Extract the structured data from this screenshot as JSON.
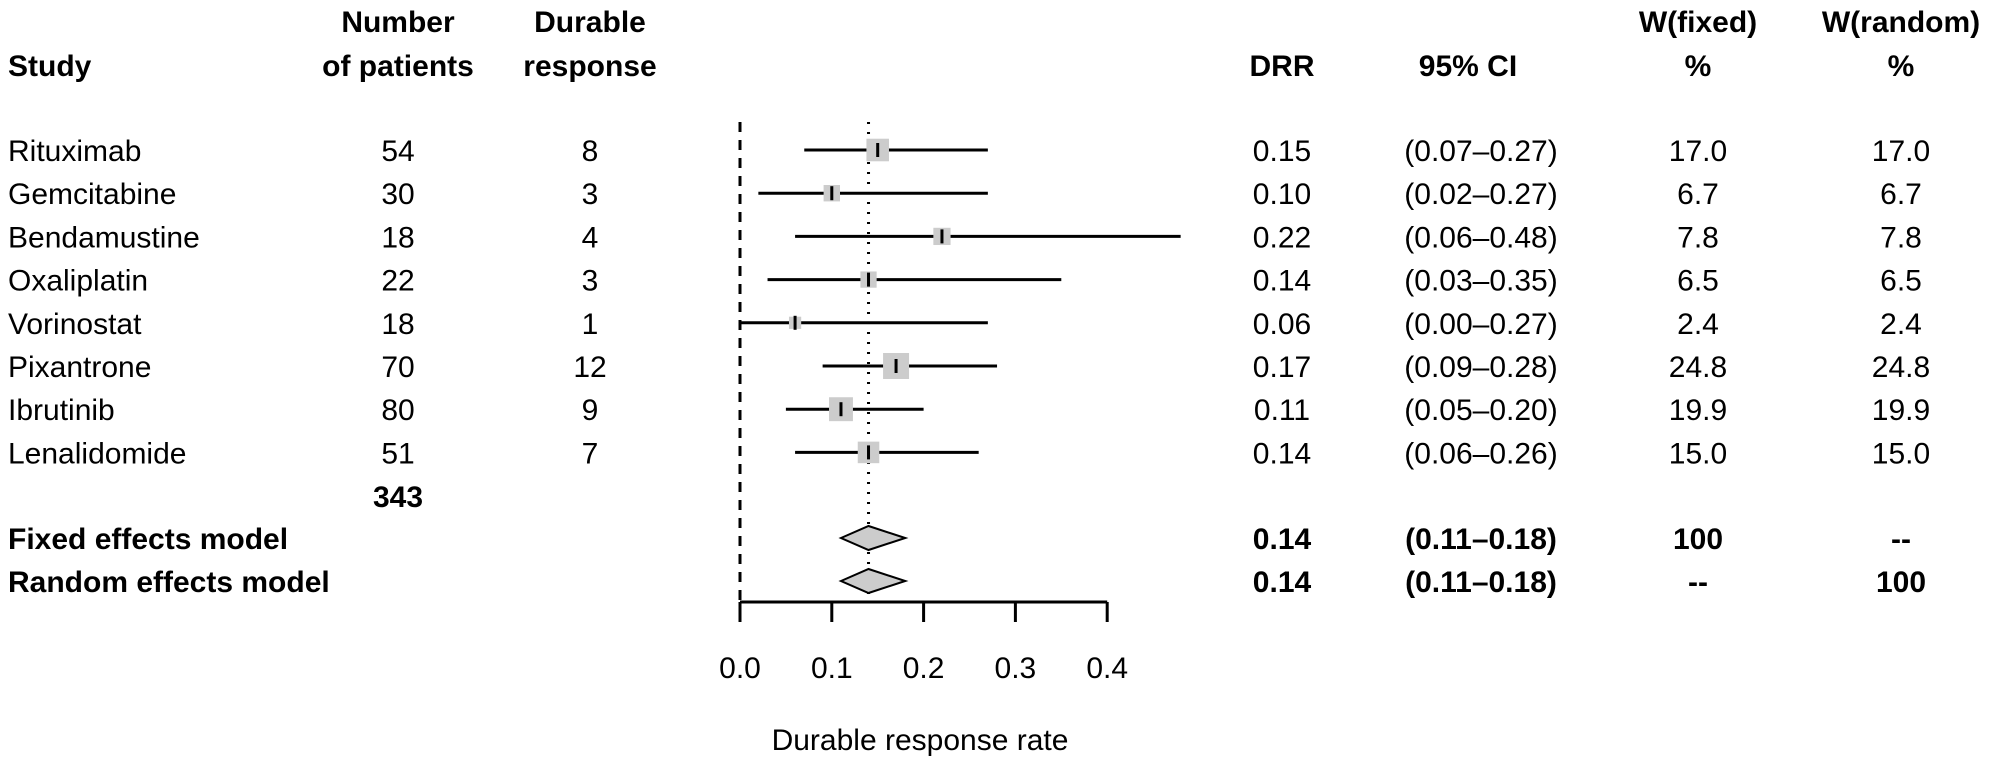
{
  "headers": {
    "study": "Study",
    "patients": [
      "Number",
      "of patients"
    ],
    "durable": [
      "Durable",
      "response"
    ],
    "drr": "DRR",
    "ci": "95% CI",
    "wfixed": [
      "W(fixed)",
      "%"
    ],
    "wrandom": [
      "W(random)",
      "%"
    ]
  },
  "total_patients": "343",
  "chart_data": {
    "type": "forest",
    "xlabel": "Durable response rate",
    "xlim": [
      0.0,
      0.4
    ],
    "xticks": [
      "0.0",
      "0.1",
      "0.2",
      "0.3",
      "0.4"
    ],
    "reference_line": 0.0,
    "pooled_line": 0.14,
    "studies": [
      {
        "study": "Rituximab",
        "patients": "54",
        "responses": "8",
        "drr": 0.15,
        "drr_text": "0.15",
        "lower": 0.07,
        "upper": 0.27,
        "ci_text": "(0.07–0.27)",
        "w_fixed": 17.0,
        "w_fixed_text": "17.0",
        "w_random_text": "17.0"
      },
      {
        "study": "Gemcitabine",
        "patients": "30",
        "responses": "3",
        "drr": 0.1,
        "drr_text": "0.10",
        "lower": 0.02,
        "upper": 0.27,
        "ci_text": "(0.02–0.27)",
        "w_fixed": 6.7,
        "w_fixed_text": "6.7",
        "w_random_text": "6.7"
      },
      {
        "study": "Bendamustine",
        "patients": "18",
        "responses": "4",
        "drr": 0.22,
        "drr_text": "0.22",
        "lower": 0.06,
        "upper": 0.48,
        "ci_text": "(0.06–0.48)",
        "w_fixed": 7.8,
        "w_fixed_text": "7.8",
        "w_random_text": "7.8"
      },
      {
        "study": "Oxaliplatin",
        "patients": "22",
        "responses": "3",
        "drr": 0.14,
        "drr_text": "0.14",
        "lower": 0.03,
        "upper": 0.35,
        "ci_text": "(0.03–0.35)",
        "w_fixed": 6.5,
        "w_fixed_text": "6.5",
        "w_random_text": "6.5"
      },
      {
        "study": "Vorinostat",
        "patients": "18",
        "responses": "1",
        "drr": 0.06,
        "drr_text": "0.06",
        "lower": 0.0,
        "upper": 0.27,
        "ci_text": "(0.00–0.27)",
        "w_fixed": 2.4,
        "w_fixed_text": "2.4",
        "w_random_text": "2.4"
      },
      {
        "study": "Pixantrone",
        "patients": "70",
        "responses": "12",
        "drr": 0.17,
        "drr_text": "0.17",
        "lower": 0.09,
        "upper": 0.28,
        "ci_text": "(0.09–0.28)",
        "w_fixed": 24.8,
        "w_fixed_text": "24.8",
        "w_random_text": "24.8"
      },
      {
        "study": "Ibrutinib",
        "patients": "80",
        "responses": "9",
        "drr": 0.11,
        "drr_text": "0.11",
        "lower": 0.05,
        "upper": 0.2,
        "ci_text": "(0.05–0.20)",
        "w_fixed": 19.9,
        "w_fixed_text": "19.9",
        "w_random_text": "19.9"
      },
      {
        "study": "Lenalidomide",
        "patients": "51",
        "responses": "7",
        "drr": 0.14,
        "drr_text": "0.14",
        "lower": 0.06,
        "upper": 0.26,
        "ci_text": "(0.06–0.26)",
        "w_fixed": 15.0,
        "w_fixed_text": "15.0",
        "w_random_text": "15.0"
      }
    ],
    "summaries": [
      {
        "label": "Fixed effects model",
        "est": 0.14,
        "lower": 0.11,
        "upper": 0.18,
        "drr_text": "0.14",
        "ci_text": "(0.11–0.18)",
        "w_fixed_text": "100",
        "w_random_text": "--"
      },
      {
        "label": "Random effects model",
        "est": 0.14,
        "lower": 0.11,
        "upper": 0.18,
        "drr_text": "0.14",
        "ci_text": "(0.11–0.18)",
        "w_fixed_text": "--",
        "w_random_text": "100"
      }
    ],
    "colors": {
      "square": "#cccccc",
      "diamond": "#cccccc",
      "line": "#000000"
    }
  }
}
